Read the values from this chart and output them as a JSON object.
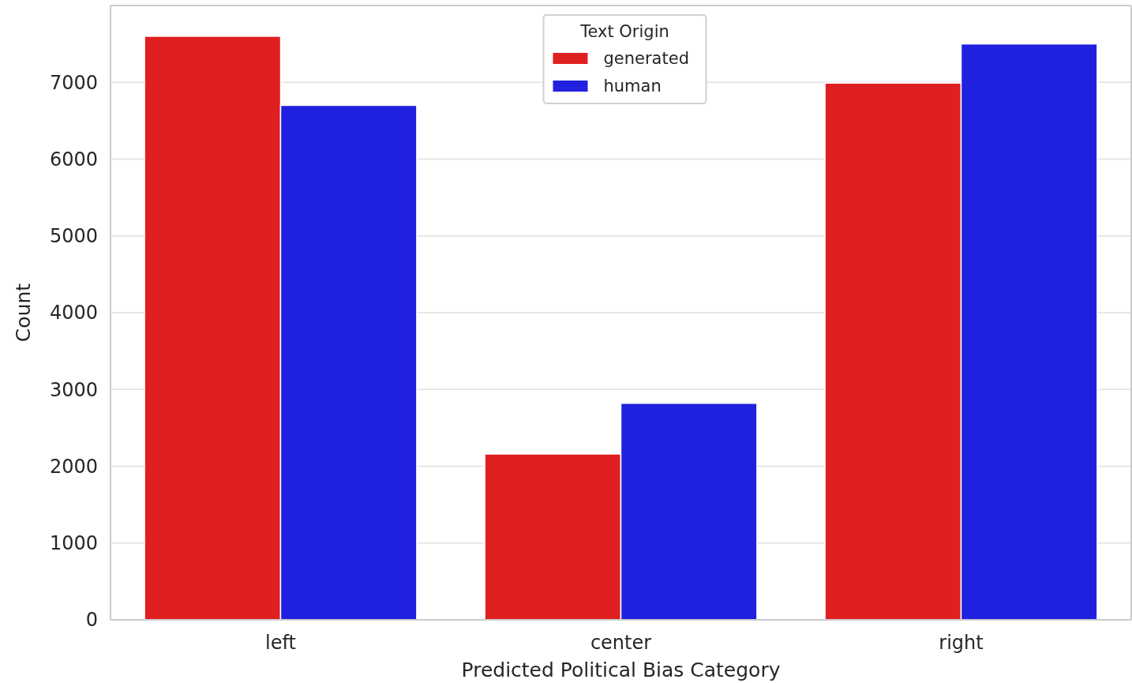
{
  "chart_data": {
    "type": "bar",
    "xlabel": "Predicted Political Bias Category",
    "ylabel": "Count",
    "legend_title": "Text Origin",
    "categories": [
      "left",
      "center",
      "right"
    ],
    "series": [
      {
        "name": "generated",
        "color": "#df2020",
        "values": [
          7600,
          2160,
          6990
        ]
      },
      {
        "name": "human",
        "color": "#2020df",
        "values": [
          6700,
          2820,
          7500
        ]
      }
    ],
    "ylim": [
      0,
      8000
    ],
    "yticks": [
      0,
      1000,
      2000,
      3000,
      4000,
      5000,
      6000,
      7000
    ],
    "grid": "y",
    "legend": "top"
  }
}
